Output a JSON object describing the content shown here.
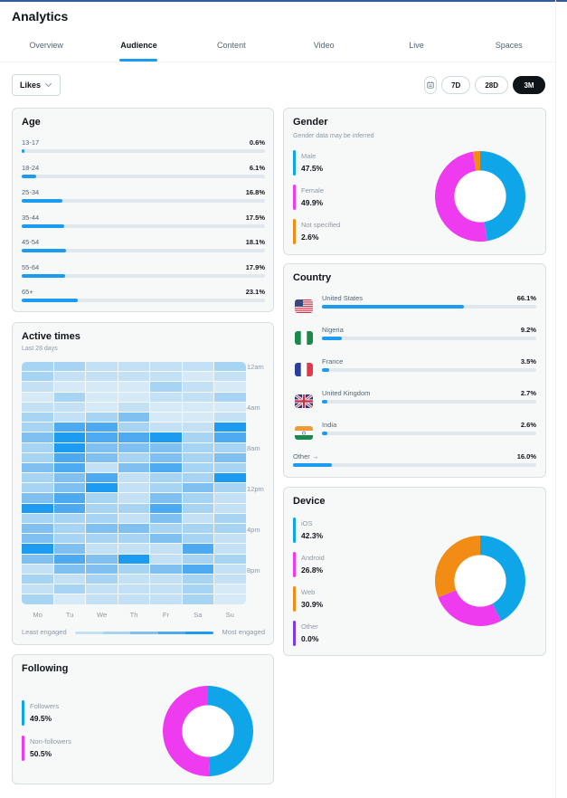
{
  "header": {
    "title": "Analytics"
  },
  "tabs": [
    {
      "label": "Overview",
      "active": false
    },
    {
      "label": "Audience",
      "active": true
    },
    {
      "label": "Content",
      "active": false
    },
    {
      "label": "Video",
      "active": false
    },
    {
      "label": "Live",
      "active": false
    },
    {
      "label": "Spaces",
      "active": false
    }
  ],
  "filters": {
    "metric": "Likes",
    "ranges": [
      {
        "label": "7D",
        "active": false
      },
      {
        "label": "28D",
        "active": false
      },
      {
        "label": "3M",
        "active": true
      }
    ]
  },
  "colors": {
    "accent": "#1d9bf0",
    "male": "#0ea5e9",
    "female": "#ee3bef",
    "not_specified": "#f28c14",
    "other": "#7c3aed",
    "track": "#e1e8ed"
  },
  "age": {
    "title": "Age",
    "rows": [
      {
        "label": "13-17",
        "value": "0.6%",
        "pct": 0.6
      },
      {
        "label": "18-24",
        "value": "6.1%",
        "pct": 6.1
      },
      {
        "label": "25-34",
        "value": "16.8%",
        "pct": 16.8
      },
      {
        "label": "35-44",
        "value": "17.5%",
        "pct": 17.5
      },
      {
        "label": "45-54",
        "value": "18.1%",
        "pct": 18.1
      },
      {
        "label": "55-64",
        "value": "17.9%",
        "pct": 17.9
      },
      {
        "label": "65+",
        "value": "23.1%",
        "pct": 23.1
      }
    ]
  },
  "gender": {
    "title": "Gender",
    "subtitle": "Gender data may be inferred",
    "items": [
      {
        "label": "Male",
        "value": "47.5%",
        "pct": 47.5,
        "color": "#0ea5e9"
      },
      {
        "label": "Female",
        "value": "49.9%",
        "pct": 49.9,
        "color": "#ee3bef"
      },
      {
        "label": "Not specified",
        "value": "2.6%",
        "pct": 2.6,
        "color": "#f28c14"
      }
    ]
  },
  "country": {
    "title": "Country",
    "rows": [
      {
        "name": "United States",
        "value": "66.1%",
        "pct": 66.1,
        "flag": "us-flag-icon"
      },
      {
        "name": "Nigeria",
        "value": "9.2%",
        "pct": 9.2,
        "flag": "ng-flag-icon"
      },
      {
        "name": "France",
        "value": "3.5%",
        "pct": 3.5,
        "flag": "fr-flag-icon"
      },
      {
        "name": "United Kingdom",
        "value": "2.7%",
        "pct": 2.7,
        "flag": "gb-flag-icon"
      },
      {
        "name": "India",
        "value": "2.6%",
        "pct": 2.6,
        "flag": "in-flag-icon"
      }
    ],
    "other": {
      "label": "Other →",
      "value": "16.0%",
      "pct": 16.0
    }
  },
  "active_times": {
    "title": "Active times",
    "subtitle": "Last 28 days",
    "days": [
      "Mo",
      "Tu",
      "We",
      "Th",
      "Fr",
      "Sa",
      "Su"
    ],
    "hour_labels": [
      "12am",
      "4am",
      "8am",
      "12pm",
      "4pm",
      "8pm"
    ],
    "legend_least": "Least engaged",
    "legend_most": "Most engaged",
    "scale": [
      "#d6e9f7",
      "#c3e0f5",
      "#a8d4f3",
      "#7fc0f0",
      "#4eaaf0",
      "#1d9bf0"
    ],
    "levels": [
      [
        2,
        2,
        1,
        1,
        1,
        1,
        2
      ],
      [
        2,
        1,
        1,
        1,
        1,
        0,
        1
      ],
      [
        1,
        0,
        0,
        0,
        2,
        1,
        0
      ],
      [
        0,
        2,
        0,
        0,
        1,
        1,
        2
      ],
      [
        1,
        1,
        0,
        1,
        0,
        0,
        0
      ],
      [
        2,
        1,
        2,
        3,
        0,
        0,
        1
      ],
      [
        2,
        4,
        4,
        2,
        1,
        1,
        5
      ],
      [
        3,
        5,
        4,
        4,
        5,
        2,
        4
      ],
      [
        2,
        5,
        3,
        3,
        3,
        2,
        2
      ],
      [
        2,
        4,
        3,
        2,
        3,
        2,
        3
      ],
      [
        3,
        4,
        1,
        3,
        4,
        2,
        2
      ],
      [
        2,
        3,
        4,
        1,
        2,
        2,
        5
      ],
      [
        2,
        3,
        5,
        1,
        2,
        3,
        2
      ],
      [
        3,
        4,
        2,
        1,
        3,
        2,
        1
      ],
      [
        5,
        4,
        2,
        2,
        4,
        2,
        1
      ],
      [
        2,
        2,
        2,
        1,
        3,
        1,
        2
      ],
      [
        3,
        2,
        3,
        3,
        2,
        2,
        2
      ],
      [
        3,
        2,
        2,
        2,
        3,
        2,
        1
      ],
      [
        5,
        3,
        1,
        1,
        1,
        4,
        1
      ],
      [
        3,
        4,
        3,
        5,
        1,
        2,
        2
      ],
      [
        1,
        3,
        3,
        2,
        3,
        4,
        1
      ],
      [
        2,
        1,
        2,
        1,
        1,
        2,
        1
      ],
      [
        1,
        2,
        1,
        1,
        1,
        2,
        0
      ],
      [
        2,
        0,
        1,
        1,
        1,
        2,
        0
      ]
    ]
  },
  "device": {
    "title": "Device",
    "items": [
      {
        "label": "iOS",
        "value": "42.3%",
        "pct": 42.3,
        "color": "#0ea5e9"
      },
      {
        "label": "Android",
        "value": "26.8%",
        "pct": 26.8,
        "color": "#ee3bef"
      },
      {
        "label": "Web",
        "value": "30.9%",
        "pct": 30.9,
        "color": "#f28c14"
      },
      {
        "label": "Other",
        "value": "0.0%",
        "pct": 0.0,
        "color": "#7c3aed"
      }
    ]
  },
  "following": {
    "title": "Following",
    "items": [
      {
        "label": "Followers",
        "value": "49.5%",
        "pct": 49.5,
        "color": "#0ea5e9"
      },
      {
        "label": "Non-followers",
        "value": "50.5%",
        "pct": 50.5,
        "color": "#ee3bef"
      }
    ]
  }
}
